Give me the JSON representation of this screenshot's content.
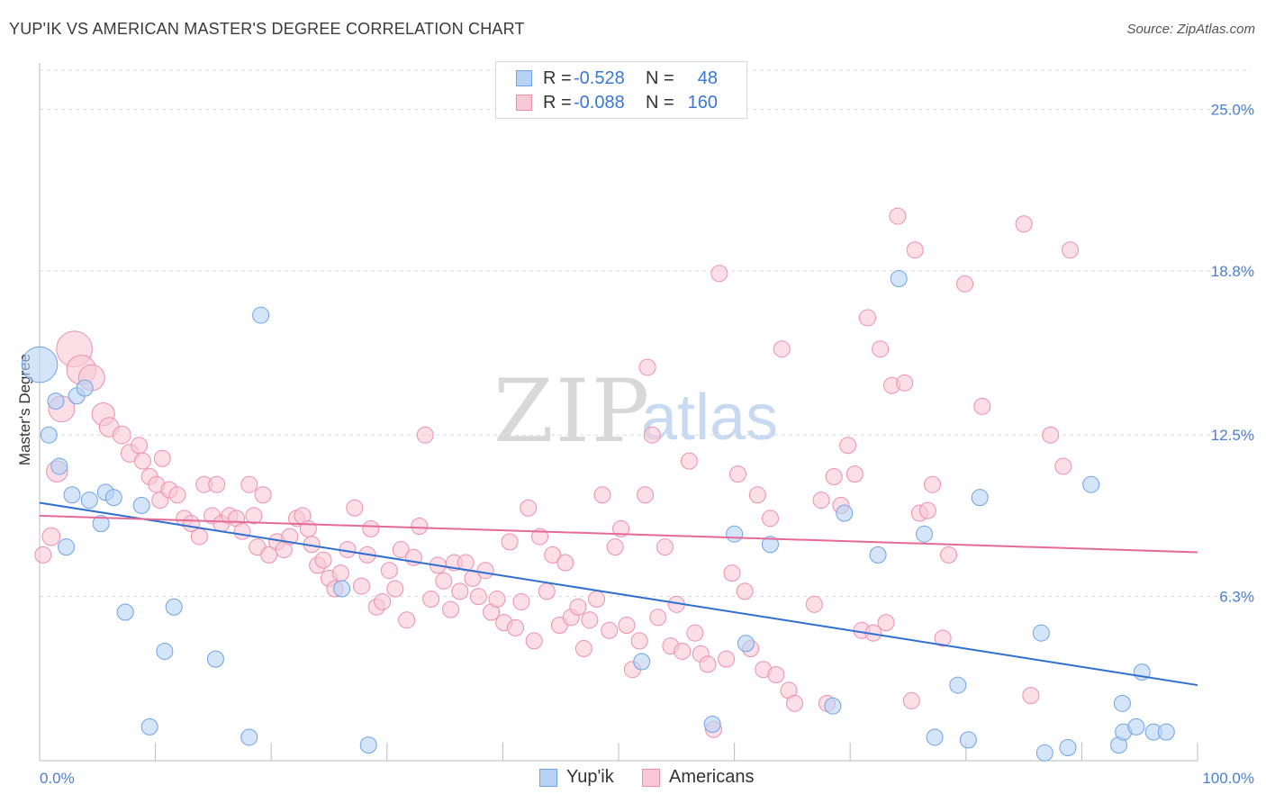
{
  "title": "YUP'IK VS AMERICAN MASTER'S DEGREE CORRELATION CHART",
  "source": "Source: ZipAtlas.com",
  "watermark": {
    "zip": "ZIP",
    "atlas": "atlas"
  },
  "legend_top": [
    {
      "r_label": "R =",
      "r_value": "-0.528",
      "n_label": "N =",
      "n_value": "48",
      "color": "#6ea3e8",
      "fill": "#b8d2f5"
    },
    {
      "r_label": "R =",
      "r_value": "-0.088",
      "n_label": "N =",
      "n_value": "160",
      "color": "#ee8fae",
      "fill": "#f8c8d6"
    }
  ],
  "legend_bottom": [
    {
      "label": "Yup'ik",
      "color": "#6ea3e8",
      "fill": "#b8d2f5"
    },
    {
      "label": "Americans",
      "color": "#ee8fae",
      "fill": "#f8c8d6"
    }
  ],
  "chart_data": {
    "type": "scatter",
    "title": "YUP'IK VS AMERICAN MASTER'S DEGREE CORRELATION CHART",
    "xlabel": "",
    "ylabel": "Master's Degree",
    "xlim": [
      0,
      100
    ],
    "ylim": [
      0,
      26.5
    ],
    "y_ticks": [
      {
        "value": 6.3,
        "label": "6.3%"
      },
      {
        "value": 12.5,
        "label": "12.5%"
      },
      {
        "value": 18.8,
        "label": "18.8%"
      },
      {
        "value": 25.0,
        "label": "25.0%"
      }
    ],
    "x_tick_labels": [
      {
        "value": 0,
        "label": "0.0%"
      },
      {
        "value": 100,
        "label": "100.0%"
      }
    ],
    "x_minor_ticks": [
      0,
      10,
      20,
      30,
      40,
      50,
      60,
      70,
      80,
      90,
      100
    ],
    "grid": true,
    "series": [
      {
        "name": "Yup'ik",
        "color": "#6ea3e8",
        "fill": "#b8d2f5",
        "trend": {
          "x": [
            0,
            100
          ],
          "y": [
            9.9,
            2.9
          ]
        },
        "points": [
          [
            0.0,
            15.2,
            2.2
          ],
          [
            0.8,
            12.5,
            1
          ],
          [
            1.4,
            13.8,
            1
          ],
          [
            1.7,
            11.3,
            1
          ],
          [
            2.3,
            8.2,
            1
          ],
          [
            2.8,
            10.2,
            1
          ],
          [
            3.2,
            14.0,
            1
          ],
          [
            3.9,
            14.3,
            1
          ],
          [
            4.3,
            10.0,
            1
          ],
          [
            5.3,
            9.1,
            1
          ],
          [
            5.7,
            10.3,
            1
          ],
          [
            6.4,
            10.1,
            1
          ],
          [
            7.4,
            5.7,
            1
          ],
          [
            8.8,
            9.8,
            1
          ],
          [
            9.5,
            1.3,
            1
          ],
          [
            10.8,
            4.2,
            1
          ],
          [
            11.6,
            5.9,
            1
          ],
          [
            15.2,
            3.9,
            1
          ],
          [
            18.1,
            0.9,
            1
          ],
          [
            19.1,
            17.1,
            1
          ],
          [
            26.1,
            6.6,
            1
          ],
          [
            28.4,
            0.6,
            1
          ],
          [
            52.0,
            3.8,
            1
          ],
          [
            58.1,
            1.4,
            1
          ],
          [
            60.0,
            8.7,
            1
          ],
          [
            61.0,
            4.5,
            1
          ],
          [
            63.1,
            8.3,
            1
          ],
          [
            68.5,
            2.1,
            1
          ],
          [
            69.5,
            9.5,
            1
          ],
          [
            72.4,
            7.9,
            1
          ],
          [
            74.2,
            18.5,
            1
          ],
          [
            76.4,
            8.7,
            1
          ],
          [
            77.3,
            0.9,
            1
          ],
          [
            79.3,
            2.9,
            1
          ],
          [
            80.2,
            0.8,
            1
          ],
          [
            81.2,
            10.1,
            1
          ],
          [
            86.5,
            4.9,
            1
          ],
          [
            86.8,
            0.3,
            1
          ],
          [
            88.8,
            0.5,
            1
          ],
          [
            90.8,
            10.6,
            1
          ],
          [
            93.2,
            0.6,
            1
          ],
          [
            93.5,
            2.2,
            1
          ],
          [
            93.6,
            1.1,
            1
          ],
          [
            94.7,
            1.3,
            1
          ],
          [
            95.2,
            3.4,
            1
          ],
          [
            96.2,
            1.1,
            1
          ],
          [
            97.3,
            1.1,
            1
          ]
        ]
      },
      {
        "name": "Americans",
        "color": "#ee8fae",
        "fill": "#f8c8d6",
        "trend": {
          "x": [
            0,
            100
          ],
          "y": [
            9.4,
            8.0
          ]
        },
        "points": [
          [
            0.3,
            7.9,
            1
          ],
          [
            1.0,
            8.6,
            1.1
          ],
          [
            1.5,
            11.1,
            1.3
          ],
          [
            1.9,
            13.5,
            1.6
          ],
          [
            3.0,
            15.8,
            2.2
          ],
          [
            3.6,
            15.0,
            1.8
          ],
          [
            4.5,
            14.7,
            1.6
          ],
          [
            5.5,
            13.3,
            1.4
          ],
          [
            6.0,
            12.8,
            1.2
          ],
          [
            7.1,
            12.5,
            1.1
          ],
          [
            7.8,
            11.8,
            1.1
          ],
          [
            8.6,
            12.1,
            1
          ],
          [
            8.9,
            11.5,
            1
          ],
          [
            9.5,
            10.9,
            1
          ],
          [
            10.1,
            10.6,
            1
          ],
          [
            10.4,
            10.0,
            1
          ],
          [
            10.6,
            11.6,
            1
          ],
          [
            11.2,
            10.4,
            1
          ],
          [
            11.9,
            10.2,
            1
          ],
          [
            12.5,
            9.3,
            1
          ],
          [
            13.1,
            9.1,
            1
          ],
          [
            13.8,
            8.6,
            1
          ],
          [
            14.2,
            10.6,
            1
          ],
          [
            14.9,
            9.4,
            1
          ],
          [
            15.3,
            10.6,
            1
          ],
          [
            15.7,
            9.1,
            1
          ],
          [
            16.4,
            9.4,
            1
          ],
          [
            17.0,
            9.3,
            1
          ],
          [
            17.5,
            8.8,
            1
          ],
          [
            18.1,
            10.6,
            1
          ],
          [
            18.5,
            9.4,
            1
          ],
          [
            18.8,
            8.2,
            1
          ],
          [
            19.3,
            10.2,
            1
          ],
          [
            19.8,
            7.9,
            1
          ],
          [
            20.5,
            8.4,
            1
          ],
          [
            21.1,
            8.1,
            1
          ],
          [
            21.6,
            8.6,
            1
          ],
          [
            22.2,
            9.3,
            1
          ],
          [
            22.7,
            9.4,
            1
          ],
          [
            23.2,
            8.9,
            1
          ],
          [
            23.5,
            8.3,
            1
          ],
          [
            24.0,
            7.5,
            1
          ],
          [
            24.5,
            7.7,
            1
          ],
          [
            25.0,
            7.0,
            1
          ],
          [
            25.5,
            6.6,
            1
          ],
          [
            26.0,
            7.2,
            1
          ],
          [
            26.6,
            8.1,
            1
          ],
          [
            27.2,
            9.7,
            1
          ],
          [
            27.8,
            6.7,
            1
          ],
          [
            28.3,
            7.9,
            1
          ],
          [
            28.6,
            8.9,
            1
          ],
          [
            29.1,
            5.9,
            1
          ],
          [
            29.6,
            6.1,
            1
          ],
          [
            30.2,
            7.3,
            1
          ],
          [
            30.7,
            6.6,
            1
          ],
          [
            31.2,
            8.1,
            1
          ],
          [
            31.7,
            5.4,
            1
          ],
          [
            32.3,
            7.8,
            1
          ],
          [
            32.8,
            9.0,
            1
          ],
          [
            33.3,
            12.5,
            1
          ],
          [
            33.8,
            6.2,
            1
          ],
          [
            34.4,
            7.5,
            1
          ],
          [
            34.9,
            6.9,
            1
          ],
          [
            35.5,
            5.8,
            1
          ],
          [
            35.8,
            7.6,
            1
          ],
          [
            36.3,
            6.5,
            1
          ],
          [
            36.8,
            7.6,
            1
          ],
          [
            37.4,
            7.0,
            1
          ],
          [
            37.9,
            6.3,
            1
          ],
          [
            38.5,
            7.3,
            1
          ],
          [
            39.0,
            5.7,
            1
          ],
          [
            39.5,
            6.2,
            1
          ],
          [
            40.1,
            5.3,
            1
          ],
          [
            40.6,
            8.4,
            1
          ],
          [
            41.1,
            5.1,
            1
          ],
          [
            41.6,
            6.1,
            1
          ],
          [
            42.2,
            9.7,
            1
          ],
          [
            42.7,
            4.6,
            1
          ],
          [
            43.2,
            8.6,
            1
          ],
          [
            43.8,
            6.5,
            1
          ],
          [
            44.3,
            7.9,
            1
          ],
          [
            44.9,
            5.2,
            1
          ],
          [
            45.4,
            7.6,
            1
          ],
          [
            45.9,
            5.5,
            1
          ],
          [
            46.5,
            5.9,
            1
          ],
          [
            47.0,
            4.3,
            1
          ],
          [
            47.5,
            5.4,
            1
          ],
          [
            48.1,
            6.2,
            1
          ],
          [
            48.6,
            10.2,
            1
          ],
          [
            49.2,
            5.0,
            1
          ],
          [
            49.7,
            8.2,
            1
          ],
          [
            50.2,
            8.9,
            1
          ],
          [
            50.7,
            5.2,
            1
          ],
          [
            51.2,
            3.5,
            1
          ],
          [
            51.8,
            4.6,
            1
          ],
          [
            52.3,
            10.2,
            1
          ],
          [
            52.5,
            15.1,
            1
          ],
          [
            52.9,
            12.5,
            1
          ],
          [
            53.4,
            5.5,
            1
          ],
          [
            54.0,
            8.2,
            1
          ],
          [
            54.5,
            4.4,
            1
          ],
          [
            55.0,
            6.0,
            1
          ],
          [
            55.5,
            4.2,
            1
          ],
          [
            56.1,
            11.5,
            1
          ],
          [
            56.6,
            4.9,
            1
          ],
          [
            57.1,
            4.1,
            1
          ],
          [
            57.7,
            3.7,
            1
          ],
          [
            58.2,
            1.2,
            1
          ],
          [
            58.7,
            18.7,
            1
          ],
          [
            59.3,
            3.9,
            1
          ],
          [
            59.8,
            7.2,
            1
          ],
          [
            60.3,
            11.0,
            1
          ],
          [
            60.9,
            6.5,
            1
          ],
          [
            61.4,
            4.3,
            1
          ],
          [
            62.0,
            10.2,
            1
          ],
          [
            62.5,
            3.5,
            1
          ],
          [
            63.1,
            9.3,
            1
          ],
          [
            63.6,
            3.3,
            1
          ],
          [
            64.1,
            15.8,
            1
          ],
          [
            64.7,
            2.7,
            1
          ],
          [
            65.2,
            2.2,
            1
          ],
          [
            66.9,
            6.0,
            1
          ],
          [
            67.5,
            10.0,
            1
          ],
          [
            68.0,
            2.2,
            1
          ],
          [
            68.6,
            10.9,
            1
          ],
          [
            69.2,
            9.8,
            1
          ],
          [
            69.8,
            12.1,
            1
          ],
          [
            70.4,
            11.0,
            1
          ],
          [
            71.0,
            5.0,
            1
          ],
          [
            71.5,
            17.0,
            1
          ],
          [
            72.0,
            4.9,
            1
          ],
          [
            72.6,
            15.8,
            1
          ],
          [
            73.1,
            5.3,
            1
          ],
          [
            73.6,
            14.4,
            1
          ],
          [
            74.1,
            20.9,
            1
          ],
          [
            74.7,
            14.5,
            1
          ],
          [
            75.3,
            2.3,
            1
          ],
          [
            75.6,
            19.6,
            1
          ],
          [
            76.0,
            9.5,
            1
          ],
          [
            76.7,
            9.6,
            1
          ],
          [
            77.1,
            10.6,
            1
          ],
          [
            78.0,
            4.7,
            1
          ],
          [
            78.5,
            7.9,
            1
          ],
          [
            79.9,
            18.3,
            1
          ],
          [
            81.4,
            13.6,
            1
          ],
          [
            85.0,
            20.6,
            1
          ],
          [
            85.6,
            2.5,
            1
          ],
          [
            87.3,
            12.5,
            1
          ],
          [
            88.4,
            11.3,
            1
          ],
          [
            89.0,
            19.6,
            1
          ]
        ]
      }
    ]
  }
}
